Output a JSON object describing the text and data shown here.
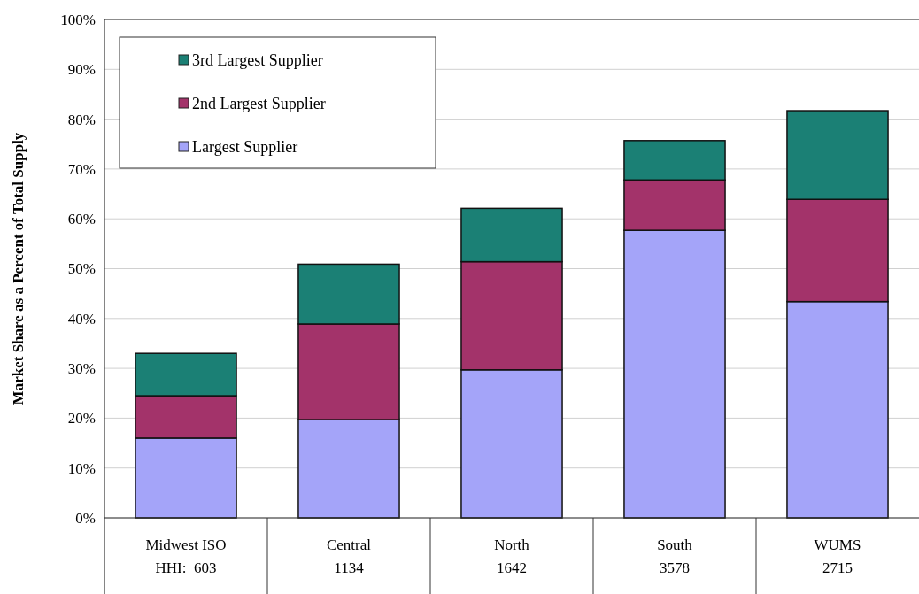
{
  "chart_data": {
    "type": "bar",
    "stacked": true,
    "ylabel": "Market Share as a Percent of Total Supply",
    "categories": [
      "Midwest ISO",
      "Central",
      "North",
      "South",
      "WUMS"
    ],
    "series": [
      {
        "name": "Largest Supplier",
        "color": "#a4a4f9",
        "values": [
          16,
          19.7,
          29.7,
          57.7,
          43.4
        ]
      },
      {
        "name": "2nd Largest Supplier",
        "color": "#a3336a",
        "values": [
          8.5,
          19.2,
          21.7,
          10.1,
          20.5
        ]
      },
      {
        "name": "3rd Largest Supplier",
        "color": "#1b8075",
        "values": [
          8.5,
          12,
          10.7,
          7.9,
          17.8
        ]
      }
    ],
    "ylim": [
      0,
      100
    ],
    "yticks": [
      {
        "value": 0,
        "label": "0%"
      },
      {
        "value": 10,
        "label": "10%"
      },
      {
        "value": 20,
        "label": "20%"
      },
      {
        "value": 30,
        "label": "30%"
      },
      {
        "value": 40,
        "label": "40%"
      },
      {
        "value": 50,
        "label": "50%"
      },
      {
        "value": 60,
        "label": "60%"
      },
      {
        "value": 70,
        "label": "70%"
      },
      {
        "value": 80,
        "label": "80%"
      },
      {
        "value": 90,
        "label": "90%"
      },
      {
        "value": 100,
        "label": "100%"
      }
    ],
    "grid": "y",
    "legend": "top left",
    "annotations": [
      "HHI:  603",
      "1134",
      "1642",
      "3578",
      "2715"
    ]
  }
}
